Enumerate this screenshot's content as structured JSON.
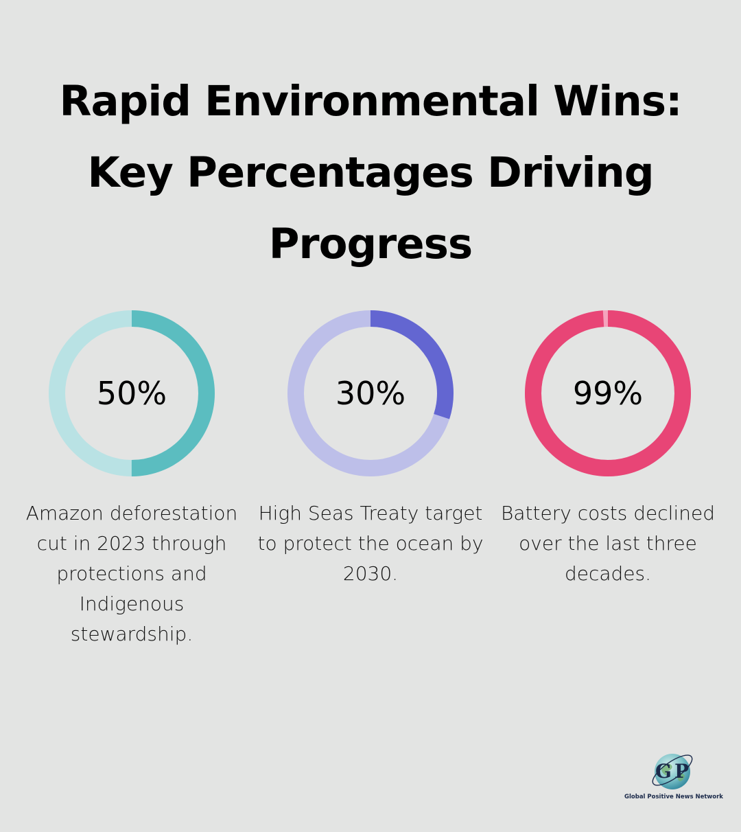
{
  "title": {
    "line1": "Rapid Environmental Wins:",
    "line2": "Key Percentages Driving",
    "line3": "Progress"
  },
  "stats": [
    {
      "value_label": "50%",
      "percent": 50,
      "caption": "Amazon deforestation cut in 2023 through protections and Indigenous stewardship.",
      "color": "#5bbdc0",
      "track_color": "#b9e2e4"
    },
    {
      "value_label": "30%",
      "percent": 30,
      "caption": "High Seas Treaty target to protect the ocean by 2030.",
      "color": "#6366d1",
      "track_color": "#bdbfe9"
    },
    {
      "value_label": "99%",
      "percent": 99,
      "caption": "Battery costs declined over the last three decades.",
      "color": "#e84576",
      "track_color": "#f5a3bd"
    }
  ],
  "logo": {
    "mark_left": "G",
    "mark_right": "P",
    "name": "Global Positive News Network"
  }
}
